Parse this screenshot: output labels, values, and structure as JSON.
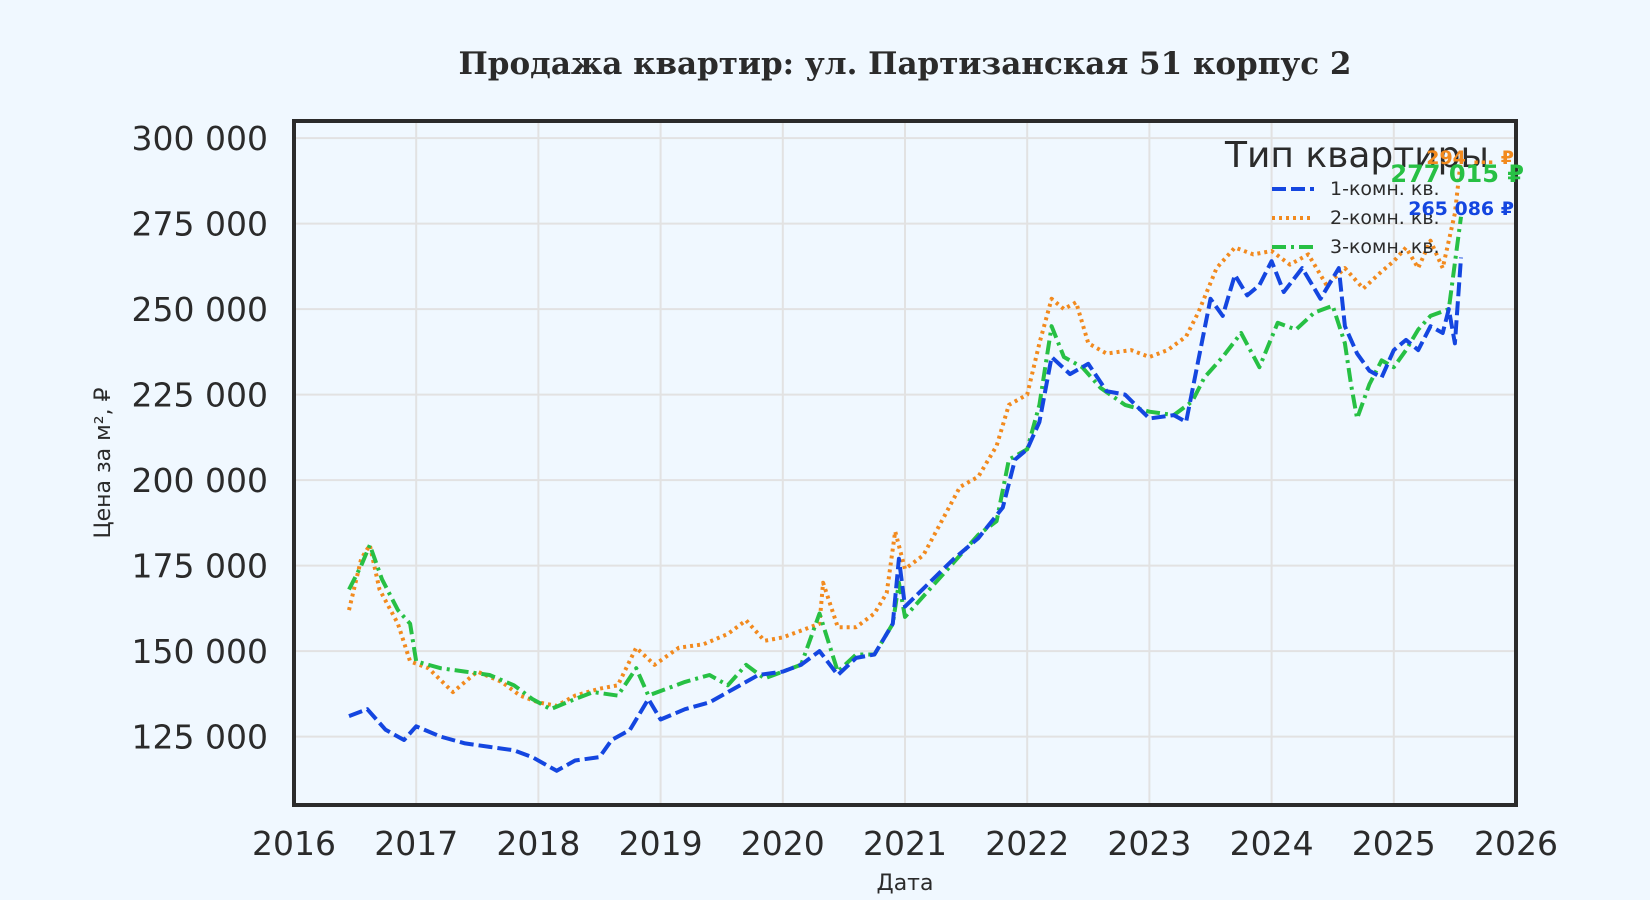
{
  "chart_data": {
    "type": "line",
    "title": "Продажа квартир: ул. Партизанская 51 корпус 2",
    "xlabel": "Дата",
    "ylabel": "Цена за м², ₽",
    "xlim": [
      2016,
      2026
    ],
    "ylim": [
      105000,
      305000
    ],
    "x_ticks": [
      "2016",
      "2017",
      "2018",
      "2019",
      "2020",
      "2021",
      "2022",
      "2023",
      "2024",
      "2025",
      "2026"
    ],
    "y_ticks": [
      "125 000",
      "150 000",
      "175 000",
      "200 000",
      "225 000",
      "250 000",
      "275 000",
      "300 000"
    ],
    "grid": true,
    "legend": {
      "title": "Тип квартиры",
      "position": "top-right"
    },
    "series": [
      {
        "name": "1-комн. кв.",
        "color": "#1446e0",
        "style": "dashed",
        "end_label": "265 086 ₽",
        "points": [
          [
            2016.45,
            131000
          ],
          [
            2016.6,
            133000
          ],
          [
            2016.75,
            127000
          ],
          [
            2016.9,
            124000
          ],
          [
            2017.0,
            128000
          ],
          [
            2017.2,
            125000
          ],
          [
            2017.4,
            123000
          ],
          [
            2017.6,
            122000
          ],
          [
            2017.8,
            121000
          ],
          [
            2017.95,
            119000
          ],
          [
            2018.05,
            117000
          ],
          [
            2018.15,
            115000
          ],
          [
            2018.3,
            118000
          ],
          [
            2018.5,
            119000
          ],
          [
            2018.6,
            124000
          ],
          [
            2018.75,
            127000
          ],
          [
            2018.9,
            136000
          ],
          [
            2019.0,
            130000
          ],
          [
            2019.2,
            133000
          ],
          [
            2019.4,
            135000
          ],
          [
            2019.6,
            139000
          ],
          [
            2019.8,
            143000
          ],
          [
            2020.0,
            144000
          ],
          [
            2020.15,
            146000
          ],
          [
            2020.3,
            150000
          ],
          [
            2020.45,
            143000
          ],
          [
            2020.6,
            148000
          ],
          [
            2020.75,
            149000
          ],
          [
            2020.9,
            158000
          ],
          [
            2020.95,
            177000
          ],
          [
            2021.0,
            163000
          ],
          [
            2021.2,
            170000
          ],
          [
            2021.4,
            177000
          ],
          [
            2021.6,
            183000
          ],
          [
            2021.8,
            192000
          ],
          [
            2021.9,
            206000
          ],
          [
            2022.0,
            209000
          ],
          [
            2022.1,
            217000
          ],
          [
            2022.2,
            236000
          ],
          [
            2022.35,
            231000
          ],
          [
            2022.5,
            234000
          ],
          [
            2022.65,
            226000
          ],
          [
            2022.8,
            225000
          ],
          [
            2023.0,
            218000
          ],
          [
            2023.2,
            219000
          ],
          [
            2023.3,
            217000
          ],
          [
            2023.4,
            235000
          ],
          [
            2023.5,
            253000
          ],
          [
            2023.6,
            248000
          ],
          [
            2023.7,
            260000
          ],
          [
            2023.8,
            254000
          ],
          [
            2023.9,
            257000
          ],
          [
            2024.0,
            264000
          ],
          [
            2024.1,
            255000
          ],
          [
            2024.25,
            262000
          ],
          [
            2024.4,
            253000
          ],
          [
            2024.55,
            262000
          ],
          [
            2024.6,
            245000
          ],
          [
            2024.7,
            237000
          ],
          [
            2024.8,
            232000
          ],
          [
            2024.9,
            230000
          ],
          [
            2025.0,
            238000
          ],
          [
            2025.1,
            241000
          ],
          [
            2025.2,
            238000
          ],
          [
            2025.3,
            245000
          ],
          [
            2025.4,
            243000
          ],
          [
            2025.45,
            250000
          ],
          [
            2025.5,
            240000
          ],
          [
            2025.55,
            265086
          ]
        ]
      },
      {
        "name": "2-комн. кв.",
        "color": "#f28a1e",
        "style": "dotted",
        "end_label": "294 ... ₽",
        "points": [
          [
            2016.45,
            162000
          ],
          [
            2016.55,
            177000
          ],
          [
            2016.62,
            181000
          ],
          [
            2016.7,
            168000
          ],
          [
            2016.85,
            158000
          ],
          [
            2016.95,
            147000
          ],
          [
            2017.1,
            145000
          ],
          [
            2017.3,
            138000
          ],
          [
            2017.5,
            144000
          ],
          [
            2017.7,
            141000
          ],
          [
            2017.85,
            137000
          ],
          [
            2018.0,
            135000
          ],
          [
            2018.15,
            134000
          ],
          [
            2018.3,
            137000
          ],
          [
            2018.5,
            139000
          ],
          [
            2018.65,
            140000
          ],
          [
            2018.8,
            151000
          ],
          [
            2018.95,
            146000
          ],
          [
            2019.15,
            151000
          ],
          [
            2019.35,
            152000
          ],
          [
            2019.55,
            155000
          ],
          [
            2019.7,
            159000
          ],
          [
            2019.85,
            153000
          ],
          [
            2020.0,
            154000
          ],
          [
            2020.15,
            156000
          ],
          [
            2020.3,
            158000
          ],
          [
            2020.33,
            170000
          ],
          [
            2020.45,
            157000
          ],
          [
            2020.6,
            157000
          ],
          [
            2020.75,
            161000
          ],
          [
            2020.85,
            167000
          ],
          [
            2020.92,
            185000
          ],
          [
            2021.0,
            174000
          ],
          [
            2021.15,
            178000
          ],
          [
            2021.3,
            188000
          ],
          [
            2021.45,
            198000
          ],
          [
            2021.6,
            201000
          ],
          [
            2021.75,
            210000
          ],
          [
            2021.85,
            222000
          ],
          [
            2022.0,
            225000
          ],
          [
            2022.1,
            240000
          ],
          [
            2022.2,
            253000
          ],
          [
            2022.3,
            250000
          ],
          [
            2022.4,
            252000
          ],
          [
            2022.5,
            240000
          ],
          [
            2022.65,
            237000
          ],
          [
            2022.85,
            238000
          ],
          [
            2023.0,
            236000
          ],
          [
            2023.15,
            238000
          ],
          [
            2023.3,
            242000
          ],
          [
            2023.4,
            249000
          ],
          [
            2023.55,
            262000
          ],
          [
            2023.7,
            268000
          ],
          [
            2023.85,
            266000
          ],
          [
            2024.0,
            267000
          ],
          [
            2024.15,
            263000
          ],
          [
            2024.3,
            266000
          ],
          [
            2024.45,
            257000
          ],
          [
            2024.6,
            262000
          ],
          [
            2024.75,
            256000
          ],
          [
            2024.9,
            261000
          ],
          [
            2025.0,
            264000
          ],
          [
            2025.1,
            268000
          ],
          [
            2025.2,
            262000
          ],
          [
            2025.3,
            270000
          ],
          [
            2025.4,
            262000
          ],
          [
            2025.5,
            278000
          ],
          [
            2025.55,
            294000
          ]
        ]
      },
      {
        "name": "3-комн. кв.",
        "color": "#27c044",
        "style": "dashdot",
        "end_label": "277 015 ₽",
        "points": [
          [
            2016.45,
            168000
          ],
          [
            2016.55,
            175000
          ],
          [
            2016.62,
            181000
          ],
          [
            2016.72,
            171000
          ],
          [
            2016.85,
            162000
          ],
          [
            2016.95,
            158000
          ],
          [
            2017.0,
            147000
          ],
          [
            2017.2,
            145000
          ],
          [
            2017.4,
            144000
          ],
          [
            2017.6,
            143000
          ],
          [
            2017.8,
            140000
          ],
          [
            2017.95,
            136000
          ],
          [
            2018.1,
            133000
          ],
          [
            2018.3,
            136000
          ],
          [
            2018.45,
            138000
          ],
          [
            2018.65,
            137000
          ],
          [
            2018.8,
            145000
          ],
          [
            2018.9,
            137000
          ],
          [
            2019.05,
            139000
          ],
          [
            2019.2,
            141000
          ],
          [
            2019.4,
            143000
          ],
          [
            2019.55,
            140000
          ],
          [
            2019.7,
            146000
          ],
          [
            2019.85,
            142000
          ],
          [
            2020.0,
            144000
          ],
          [
            2020.15,
            146000
          ],
          [
            2020.3,
            161000
          ],
          [
            2020.45,
            144000
          ],
          [
            2020.6,
            149000
          ],
          [
            2020.75,
            149000
          ],
          [
            2020.9,
            158000
          ],
          [
            2020.95,
            170000
          ],
          [
            2021.0,
            160000
          ],
          [
            2021.2,
            168000
          ],
          [
            2021.4,
            176000
          ],
          [
            2021.6,
            184000
          ],
          [
            2021.75,
            188000
          ],
          [
            2021.85,
            206000
          ],
          [
            2022.0,
            209000
          ],
          [
            2022.1,
            222000
          ],
          [
            2022.2,
            245000
          ],
          [
            2022.3,
            236000
          ],
          [
            2022.45,
            233000
          ],
          [
            2022.6,
            227000
          ],
          [
            2022.8,
            222000
          ],
          [
            2023.0,
            220000
          ],
          [
            2023.2,
            219000
          ],
          [
            2023.35,
            223000
          ],
          [
            2023.45,
            230000
          ],
          [
            2023.6,
            236000
          ],
          [
            2023.75,
            243000
          ],
          [
            2023.9,
            233000
          ],
          [
            2024.05,
            246000
          ],
          [
            2024.2,
            244000
          ],
          [
            2024.35,
            249000
          ],
          [
            2024.5,
            251000
          ],
          [
            2024.6,
            240000
          ],
          [
            2024.65,
            228000
          ],
          [
            2024.7,
            218000
          ],
          [
            2024.8,
            228000
          ],
          [
            2024.9,
            235000
          ],
          [
            2025.0,
            233000
          ],
          [
            2025.1,
            238000
          ],
          [
            2025.2,
            244000
          ],
          [
            2025.3,
            248000
          ],
          [
            2025.45,
            250000
          ],
          [
            2025.55,
            277015
          ]
        ]
      }
    ]
  }
}
